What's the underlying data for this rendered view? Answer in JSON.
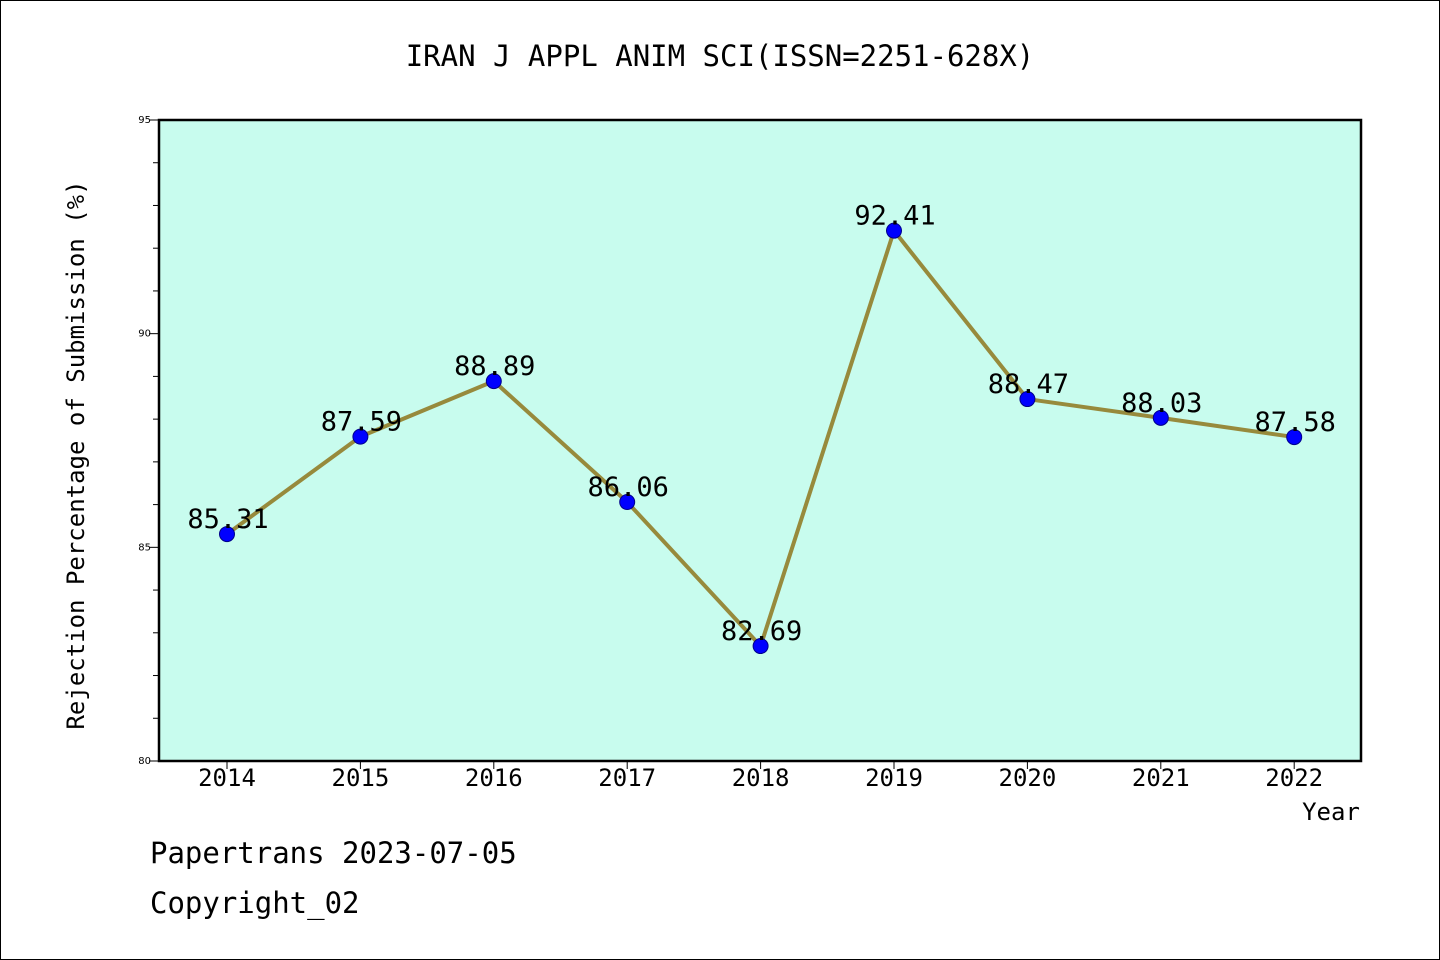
{
  "chart_data": {
    "type": "line",
    "title": "IRAN J APPL ANIM SCI(ISSN=2251-628X)",
    "xlabel": "Year",
    "ylabel": "Rejection Percentage of Submission (%)",
    "categories": [
      "2014",
      "2015",
      "2016",
      "2017",
      "2018",
      "2019",
      "2020",
      "2021",
      "2022"
    ],
    "values": [
      85.31,
      87.59,
      88.89,
      86.06,
      82.69,
      92.41,
      88.47,
      88.03,
      87.58
    ],
    "data_labels": [
      "85.31",
      "87.59",
      "88.89",
      "86.06",
      "82.69",
      "92.41",
      "88.47",
      "88.03",
      "87.58"
    ],
    "ylim": [
      80,
      95
    ],
    "yticks": [
      "80",
      "85",
      "90",
      "95"
    ],
    "grid": false,
    "colors": {
      "plot_background": "#c8fcee",
      "line": "#978a3c",
      "marker": "#0000ff",
      "marker_edge": "#00008b"
    }
  },
  "footer": {
    "line1": "Papertrans 2023-07-05",
    "line2": "Copyright_02"
  }
}
